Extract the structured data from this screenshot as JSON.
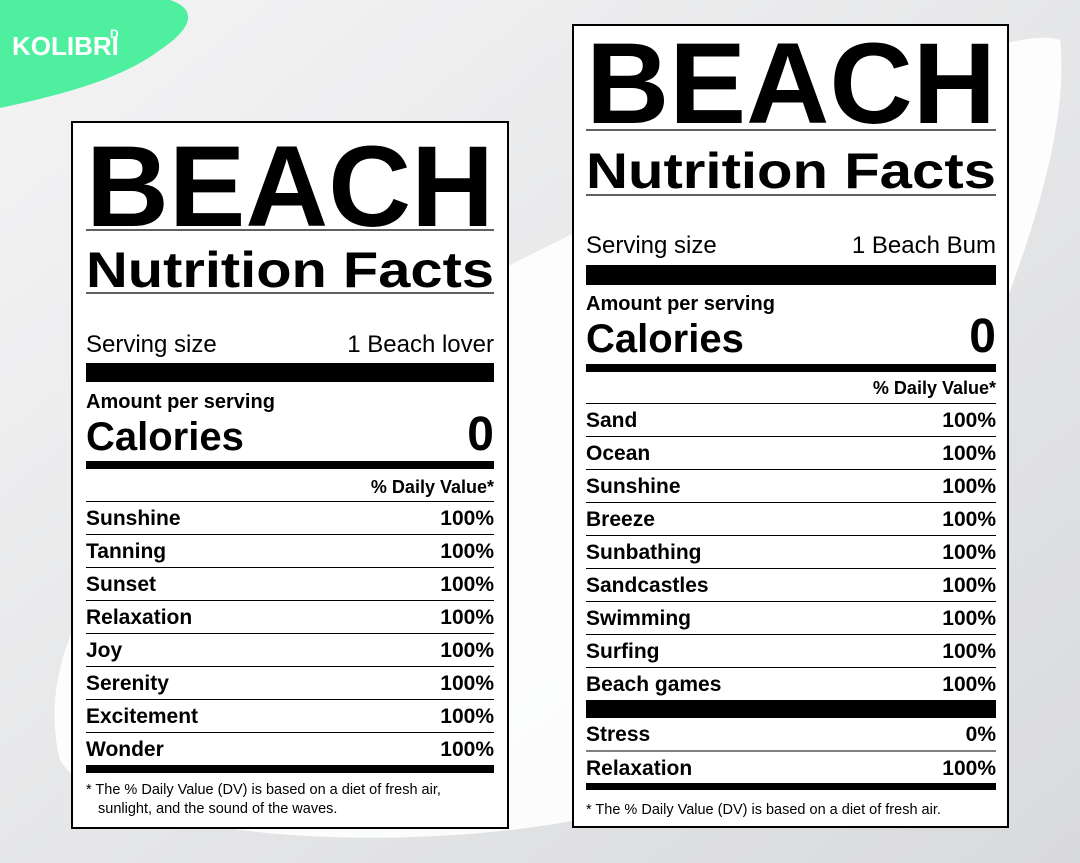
{
  "logo": {
    "text": "KOLIBRI",
    "mark": "D"
  },
  "labels": [
    {
      "title": "BEACH",
      "subtitle": "Nutrition Facts",
      "serving_label": "Serving size",
      "serving_value": "1 Beach lover",
      "amount": "Amount per serving",
      "calories_label": "Calories",
      "calories_value": "0",
      "daily_value": "% Daily Value*",
      "rows": [
        [
          "Sunshine",
          "100%"
        ],
        [
          "Tanning",
          "100%"
        ],
        [
          "Sunset",
          "100%"
        ],
        [
          "Relaxation",
          "100%"
        ],
        [
          "Joy",
          "100%"
        ],
        [
          "Serenity",
          "100%"
        ],
        [
          "Excitement",
          "100%"
        ],
        [
          "Wonder",
          "100%"
        ]
      ],
      "extra_rows": [],
      "footnote": [
        "* The % Daily Value (DV) is based on a diet of fresh air,",
        "sunlight, and the sound of the waves."
      ]
    },
    {
      "title": "BEACH",
      "subtitle": "Nutrition Facts",
      "serving_label": "Serving size",
      "serving_value": "1 Beach Bum",
      "amount": "Amount per serving",
      "calories_label": "Calories",
      "calories_value": "0",
      "daily_value": "% Daily Value*",
      "rows": [
        [
          "Sand",
          "100%"
        ],
        [
          "Ocean",
          "100%"
        ],
        [
          "Sunshine",
          "100%"
        ],
        [
          "Breeze",
          "100%"
        ],
        [
          "Sunbathing",
          "100%"
        ],
        [
          "Sandcastles",
          "100%"
        ],
        [
          "Swimming",
          "100%"
        ],
        [
          "Surfing",
          "100%"
        ],
        [
          "Beach games",
          "100%"
        ]
      ],
      "extra_rows": [
        [
          "Stress",
          "0%"
        ],
        [
          "Relaxation",
          "100%"
        ]
      ],
      "footnote": [
        "* The % Daily Value (DV) is based on a diet of fresh air."
      ]
    }
  ]
}
